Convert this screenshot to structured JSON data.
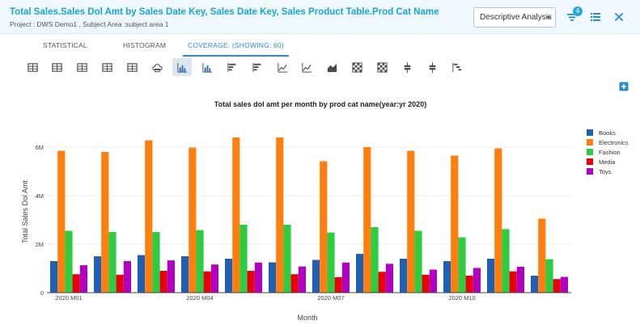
{
  "header": {
    "title": "Total Sales.Sales Dol Amt by Sales Date Key, Sales Date Key, Sales Product Table.Prod Cat Name",
    "subtitle": "Project : DWS Demo1 ,  Subject Area :subject area 1",
    "analysis_select": "Descriptive Analysis",
    "filter_badge": "4"
  },
  "tabs": [
    {
      "label": "Statistical"
    },
    {
      "label": "Histogram"
    },
    {
      "label": "Coverage: (Showing: 60)"
    }
  ],
  "toolbar": {
    "icons": [
      "table-icon",
      "table-icon",
      "table-icon",
      "table-icon",
      "table-icon",
      "cloud-icon",
      "bar-chart-icon",
      "bar-chart-icon",
      "horizontal-bar-icon",
      "horizontal-bar-icon",
      "line-chart-icon",
      "line-chart-icon",
      "area-chart-icon",
      "heatmap-icon",
      "heatmap-icon",
      "box-plot-icon",
      "box-plot-icon",
      "waterfall-icon"
    ],
    "active_index": 6
  },
  "chart_data": {
    "type": "bar",
    "title": "Total sales dol amt per month by prod cat name(year:yr 2020)",
    "xlabel": "Month",
    "ylabel": "Total Sales Dol Amt",
    "ylim": [
      0,
      7000000
    ],
    "yticks": [
      0,
      2000000,
      4000000,
      6000000
    ],
    "ytick_labels": [
      "0",
      "2M",
      "4M",
      "6M"
    ],
    "categories": [
      "2020 M01",
      "2020 M02",
      "2020 M03",
      "2020 M04",
      "2020 M05",
      "2020 M06",
      "2020 M07",
      "2020 M08",
      "2020 M09",
      "2020 M10",
      "2020 M11",
      "2020 M12"
    ],
    "xtick_labels": [
      "2020 M01",
      "",
      "",
      "2020 M04",
      "",
      "",
      "2020 M07",
      "",
      "",
      "2020 M10",
      "",
      ""
    ],
    "legend_position": "right",
    "series": [
      {
        "name": "Books",
        "color": "#1f5fb4",
        "values": [
          1300000,
          1500000,
          1550000,
          1500000,
          1400000,
          1250000,
          1350000,
          1600000,
          1400000,
          1300000,
          1400000,
          700000
        ]
      },
      {
        "name": "Electronics",
        "color": "#ff7f0e",
        "values": [
          5850000,
          5800000,
          6280000,
          5980000,
          6400000,
          6400000,
          5420000,
          6000000,
          5850000,
          5650000,
          5950000,
          3050000
        ]
      },
      {
        "name": "Fashion",
        "color": "#2ecc40",
        "values": [
          2550000,
          2500000,
          2500000,
          2580000,
          2800000,
          2800000,
          2480000,
          2700000,
          2550000,
          2280000,
          2620000,
          1380000
        ]
      },
      {
        "name": "Media",
        "color": "#e8000b",
        "values": [
          760000,
          740000,
          900000,
          880000,
          900000,
          760000,
          640000,
          860000,
          740000,
          700000,
          880000,
          560000
        ]
      },
      {
        "name": "Toys",
        "color": "#b000c0",
        "values": [
          1130000,
          1300000,
          1330000,
          1160000,
          1240000,
          1080000,
          1240000,
          1190000,
          950000,
          1020000,
          1070000,
          650000
        ]
      }
    ]
  }
}
